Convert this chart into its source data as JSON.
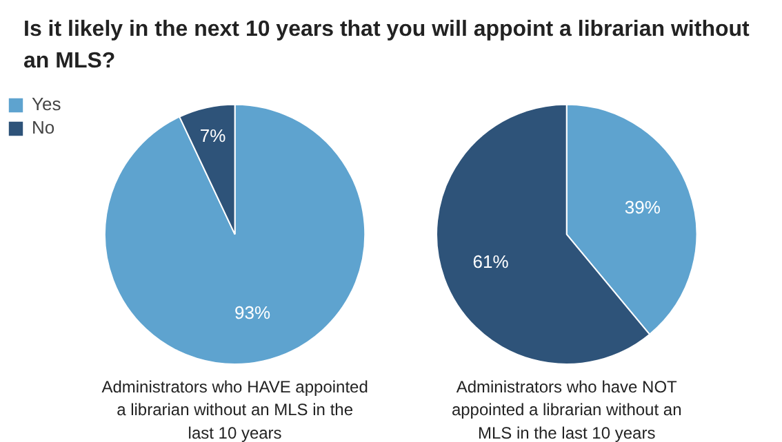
{
  "chart_data": [
    {
      "type": "pie",
      "title": "Is it likely in the next 10 years that you will appoint a librarian without an MLS?",
      "categories": [
        "Yes",
        "No"
      ],
      "values": [
        93,
        7
      ],
      "colors": [
        "#5ea3cf",
        "#2e5379"
      ],
      "value_labels": [
        "93%",
        "7%"
      ],
      "xlabel": "Administrators who HAVE appointed a librarian without an MLS in the last 10 years",
      "legend": "top left"
    },
    {
      "type": "pie",
      "categories": [
        null,
        null
      ],
      "values": [
        39,
        61
      ],
      "colors": [
        "#5ea3cf",
        "#2e5379"
      ],
      "value_labels": [
        "39%",
        "61%"
      ],
      "xlabel": "Administrators who have NOT appointed a librarian without an MLS in the last 10 years"
    }
  ]
}
